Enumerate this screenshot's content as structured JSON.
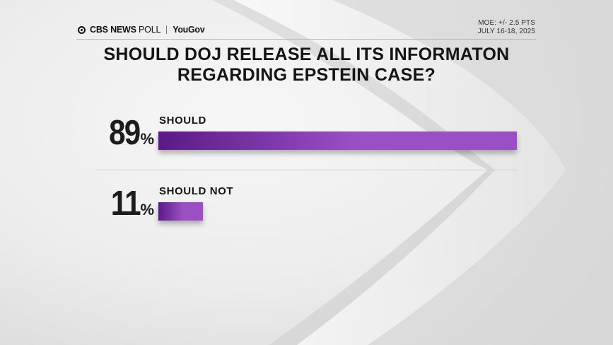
{
  "header": {
    "brand": "CBS NEWS",
    "brand_suffix": "POLL",
    "partner": "YouGov",
    "moe": "MOE: +/- 2.5 PTS",
    "dates": "JULY 16-18, 2025"
  },
  "chart_data": {
    "type": "bar",
    "title_lines": [
      "SHOULD DOJ RELEASE ALL ITS INFORMATON",
      "REGARDING EPSTEIN CASE?"
    ],
    "categories": [
      "SHOULD",
      "SHOULD NOT"
    ],
    "values": [
      89,
      11
    ],
    "value_labels": [
      "89",
      "11"
    ],
    "value_suffix": "%",
    "xlim": [
      0,
      100
    ],
    "orientation": "horizontal",
    "bar_color_start": "#5a1a86",
    "bar_color_end": "#9b4fc4",
    "grid": false,
    "legend": "none"
  }
}
